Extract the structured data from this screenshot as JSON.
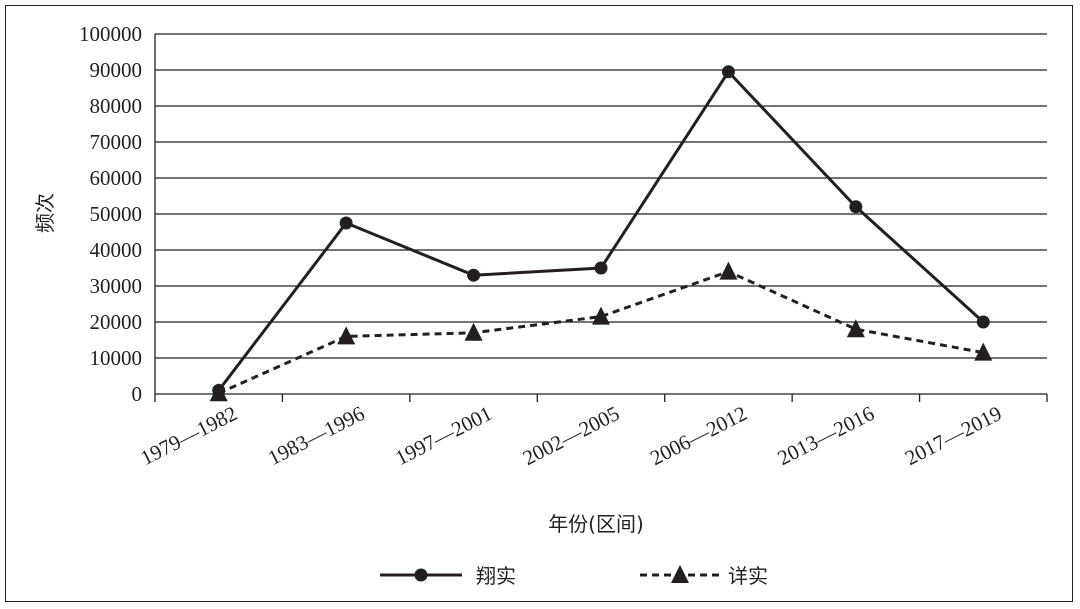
{
  "chart_data": {
    "type": "line",
    "title": "",
    "xlabel": "年份(区间)",
    "ylabel": "频次",
    "categories": [
      "1979—1982",
      "1983—1996",
      "1997—2001",
      "2002—2005",
      "2006—2012",
      "2013—2016",
      "2017—2019"
    ],
    "ylim": [
      0,
      100000
    ],
    "yticks": [
      0,
      10000,
      20000,
      30000,
      40000,
      50000,
      60000,
      70000,
      80000,
      90000,
      100000
    ],
    "grid": true,
    "legend_position": "bottom",
    "series": [
      {
        "name": "翔实",
        "marker": "circle",
        "line_style": "solid",
        "color": "#231f20",
        "values": [
          1000,
          47500,
          33000,
          35000,
          89500,
          52000,
          20000
        ]
      },
      {
        "name": "详实",
        "marker": "triangle",
        "line_style": "dashed",
        "color": "#231f20",
        "values": [
          200,
          16000,
          17000,
          21500,
          34000,
          18000,
          11500
        ]
      }
    ]
  }
}
